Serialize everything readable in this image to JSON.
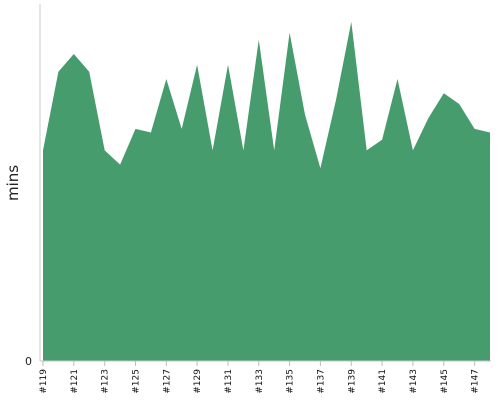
{
  "chart_data": {
    "type": "area",
    "x": [
      "#119",
      "#120",
      "#121",
      "#122",
      "#123",
      "#124",
      "#125",
      "#126",
      "#127",
      "#128",
      "#129",
      "#130",
      "#131",
      "#132",
      "#133",
      "#134",
      "#135",
      "#136",
      "#137",
      "#138",
      "#139",
      "#140",
      "#141",
      "#142",
      "#143",
      "#144",
      "#145",
      "#146",
      "#147",
      "#148"
    ],
    "values": [
      59,
      81,
      86,
      81,
      59,
      55,
      65,
      64,
      79,
      65,
      83,
      59,
      83,
      59,
      90,
      59,
      92,
      69,
      54,
      73,
      95,
      59,
      62,
      79,
      59,
      68,
      75,
      72,
      65,
      64
    ],
    "tick_labels": [
      "#119",
      "#121",
      "#123",
      "#125",
      "#127",
      "#129",
      "#131",
      "#133",
      "#135",
      "#137",
      "#139",
      "#141",
      "#143",
      "#145",
      "#147"
    ],
    "ylabel": "mins",
    "y_tick_labels": [
      "0"
    ],
    "ylim": [
      0,
      100
    ],
    "grid": false,
    "colors": {
      "area": "#469c6d",
      "axis": "#c8c8c8"
    }
  }
}
